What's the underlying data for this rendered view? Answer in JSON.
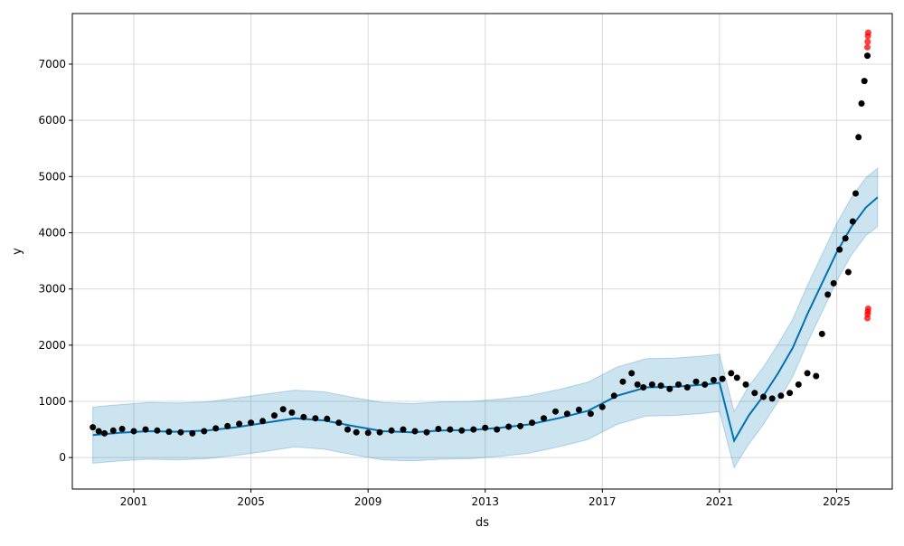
{
  "chart_data": {
    "type": "scatter",
    "title": "",
    "xlabel": "ds",
    "ylabel": "y",
    "xlim": [
      1998.9,
      2026.9
    ],
    "ylim": [
      -560,
      7900
    ],
    "grid": true,
    "x_ticks": [
      {
        "value": 2001,
        "label": "2001"
      },
      {
        "value": 2005,
        "label": "2005"
      },
      {
        "value": 2009,
        "label": "2009"
      },
      {
        "value": 2013,
        "label": "2013"
      },
      {
        "value": 2017,
        "label": "2017"
      },
      {
        "value": 2021,
        "label": "2021"
      },
      {
        "value": 2025,
        "label": "2025"
      }
    ],
    "y_ticks": [
      {
        "value": 0,
        "label": "0"
      },
      {
        "value": 1000,
        "label": "1000"
      },
      {
        "value": 2000,
        "label": "2000"
      },
      {
        "value": 3000,
        "label": "3000"
      },
      {
        "value": 4000,
        "label": "4000"
      },
      {
        "value": 5000,
        "label": "5000"
      },
      {
        "value": 6000,
        "label": "6000"
      },
      {
        "value": 7000,
        "label": "7000"
      }
    ],
    "colors": {
      "observed": "#000000",
      "anomaly": "#ff0000",
      "forecast": "#0072b2",
      "interval": "#0072b2"
    },
    "series": [
      {
        "kind": "observed",
        "x": [
          1999.6,
          1999.8,
          2000.0,
          2000.3,
          2000.6,
          2001.0,
          2001.4,
          2001.8,
          2002.2,
          2002.6,
          2003.0,
          2003.4,
          2003.8,
          2004.2,
          2004.6,
          2005.0,
          2005.4,
          2005.8,
          2006.1,
          2006.4,
          2006.8,
          2007.2,
          2007.6,
          2008.0,
          2008.3,
          2008.6,
          2009.0,
          2009.4,
          2009.8,
          2010.2,
          2010.6,
          2011.0,
          2011.4,
          2011.8,
          2012.2,
          2012.6,
          2013.0,
          2013.4,
          2013.8,
          2014.2,
          2014.6,
          2015.0,
          2015.4,
          2015.8,
          2016.2,
          2016.6,
          2017.0,
          2017.4,
          2017.7,
          2018.0,
          2018.2,
          2018.4,
          2018.7,
          2019.0,
          2019.3,
          2019.6,
          2019.9,
          2020.2,
          2020.5,
          2020.8,
          2021.1,
          2021.4,
          2021.6,
          2021.9,
          2022.2,
          2022.5,
          2022.8,
          2023.1,
          2023.4,
          2023.7,
          2024.0,
          2024.3,
          2024.5,
          2024.7,
          2024.9,
          2025.1,
          2025.3,
          2025.4,
          2025.55,
          2025.65,
          2025.75,
          2025.85,
          2025.95,
          2026.05
        ],
        "y": [
          540,
          470,
          430,
          480,
          510,
          470,
          500,
          480,
          460,
          450,
          430,
          470,
          520,
          560,
          600,
          620,
          650,
          750,
          860,
          800,
          720,
          700,
          690,
          620,
          500,
          450,
          440,
          450,
          480,
          500,
          470,
          450,
          510,
          500,
          480,
          500,
          530,
          500,
          550,
          560,
          620,
          700,
          820,
          780,
          850,
          780,
          900,
          1100,
          1350,
          1500,
          1300,
          1250,
          1300,
          1280,
          1220,
          1300,
          1250,
          1350,
          1300,
          1380,
          1400,
          1500,
          1420,
          1300,
          1150,
          1080,
          1050,
          1100,
          1150,
          1300,
          1500,
          1450,
          2200,
          2900,
          3100,
          3700,
          3900,
          3300,
          4200,
          4700,
          5700,
          6300,
          6700,
          7150
        ]
      },
      {
        "kind": "anomaly",
        "x": [
          2026.05,
          2026.06,
          2026.07,
          2026.08,
          2026.05,
          2026.06,
          2026.07,
          2026.08
        ],
        "y": [
          7300,
          7400,
          7500,
          7560,
          2480,
          2550,
          2600,
          2650
        ]
      },
      {
        "kind": "forecast",
        "x": [
          1999.6,
          2000.5,
          2001.5,
          2002.5,
          2003.5,
          2004.5,
          2005.5,
          2006.5,
          2007.5,
          2008.5,
          2009.5,
          2010.5,
          2011.5,
          2012.5,
          2013.5,
          2014.5,
          2015.5,
          2016.5,
          2017.5,
          2018.5,
          2019.5,
          2020.5,
          2021.0,
          2021.5,
          2022.0,
          2022.5,
          2023.0,
          2023.5,
          2024.0,
          2024.5,
          2025.0,
          2025.5,
          2026.0,
          2026.4
        ],
        "y": [
          400,
          440,
          470,
          460,
          480,
          540,
          620,
          700,
          660,
          560,
          470,
          450,
          480,
          490,
          530,
          590,
          700,
          830,
          1100,
          1250,
          1260,
          1300,
          1330,
          300,
          750,
          1100,
          1500,
          1950,
          2550,
          3100,
          3650,
          4100,
          4450,
          4630
        ]
      },
      {
        "kind": "interval",
        "x": [
          1999.6,
          2000.5,
          2001.5,
          2002.5,
          2003.5,
          2004.5,
          2005.5,
          2006.5,
          2007.5,
          2008.5,
          2009.5,
          2010.5,
          2011.5,
          2012.5,
          2013.5,
          2014.5,
          2015.5,
          2016.5,
          2017.5,
          2018.5,
          2019.5,
          2020.5,
          2021.0,
          2021.5,
          2022.0,
          2022.5,
          2023.0,
          2023.5,
          2024.0,
          2024.5,
          2025.0,
          2025.5,
          2026.0,
          2026.4
        ],
        "upper": [
          900,
          940,
          980,
          970,
          990,
          1060,
          1130,
          1200,
          1170,
          1070,
          980,
          960,
          990,
          1000,
          1040,
          1100,
          1210,
          1340,
          1610,
          1760,
          1770,
          1810,
          1840,
          820,
          1270,
          1610,
          2020,
          2460,
          3060,
          3610,
          4160,
          4620,
          4980,
          5150
        ],
        "lower": [
          -100,
          -60,
          -30,
          -40,
          -20,
          40,
          110,
          190,
          150,
          50,
          -40,
          -60,
          -30,
          -20,
          20,
          80,
          190,
          320,
          590,
          740,
          750,
          790,
          820,
          -180,
          240,
          590,
          1000,
          1440,
          2040,
          2590,
          3140,
          3600,
          3950,
          4110
        ]
      }
    ]
  }
}
